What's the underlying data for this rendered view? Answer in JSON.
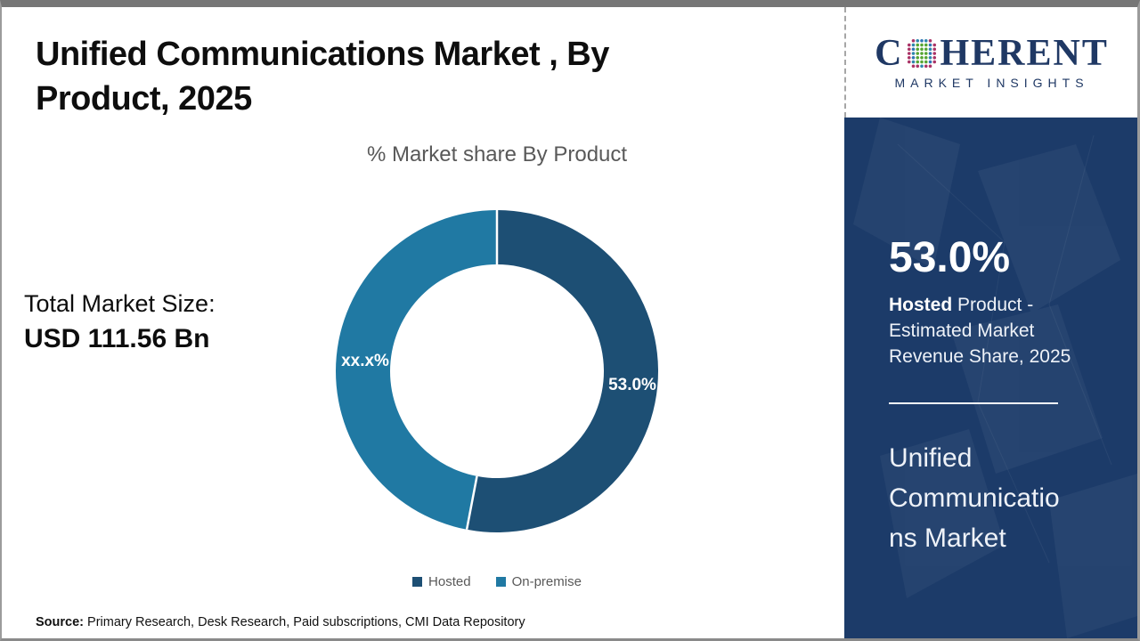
{
  "title": "Unified Communications Market , By Product, 2025",
  "subtitle": "% Market share By Product",
  "total_market": {
    "label": "Total Market Size:",
    "value": "USD 111.56 Bn"
  },
  "source": {
    "label": "Source:",
    "text": " Primary Research, Desk Research, Paid subscriptions, CMI Data Repository"
  },
  "logo": {
    "prefix": "C",
    "suffix": "HERENT",
    "tagline": "MARKET INSIGHTS"
  },
  "sidebar": {
    "stat_value": "53.0%",
    "stat_bold": "Hosted",
    "stat_text": " Product - Estimated Market Revenue Share, 2025",
    "market_name": "Unified Communications Market"
  },
  "chart_data": {
    "type": "pie",
    "donut": true,
    "title": "% Market share By Product",
    "categories": [
      "Hosted",
      "On-premise"
    ],
    "values": [
      53.0,
      47.0
    ],
    "slice_labels": [
      "53.0%",
      "xx.x%"
    ],
    "colors": [
      "#1d4f74",
      "#2079a3"
    ],
    "legend_position": "bottom",
    "start_angle_deg": -90,
    "direction": "clockwise"
  },
  "colors": {
    "sidebar_bg": "#1c3b69",
    "logo_navy": "#1f3864",
    "text_gray": "#595959"
  }
}
